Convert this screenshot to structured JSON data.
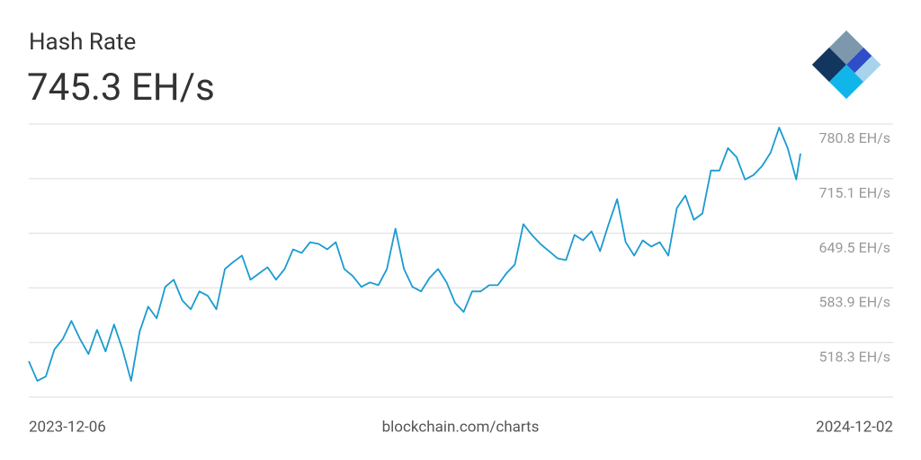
{
  "chart_data": {
    "type": "line",
    "title": "Hash Rate",
    "subtitle": "745.3 EH/s",
    "source": "blockchain.com/charts",
    "color": "#1b9bd1",
    "grid": true,
    "ylim": [
      452.7,
      780.8
    ],
    "yticks": [
      {
        "value": 518.3,
        "label": "518.3 EH/s"
      },
      {
        "value": 583.9,
        "label": "583.9 EH/s"
      },
      {
        "value": 649.5,
        "label": "649.5 EH/s"
      },
      {
        "value": 715.1,
        "label": "715.1 EH/s"
      },
      {
        "value": 780.8,
        "label": "780.8 EH/s"
      }
    ],
    "x": [
      "2023-12-06",
      "2023-12-10",
      "2023-12-14",
      "2023-12-18",
      "2023-12-22",
      "2023-12-26",
      "2023-12-30",
      "2024-01-03",
      "2024-01-07",
      "2024-01-11",
      "2024-01-15",
      "2024-01-19",
      "2024-01-23",
      "2024-01-27",
      "2024-01-31",
      "2024-02-04",
      "2024-02-08",
      "2024-02-12",
      "2024-02-16",
      "2024-02-20",
      "2024-02-24",
      "2024-02-28",
      "2024-03-03",
      "2024-03-07",
      "2024-03-11",
      "2024-03-15",
      "2024-03-19",
      "2024-03-23",
      "2024-03-27",
      "2024-03-31",
      "2024-04-04",
      "2024-04-08",
      "2024-04-12",
      "2024-04-16",
      "2024-04-20",
      "2024-04-24",
      "2024-04-28",
      "2024-05-02",
      "2024-05-06",
      "2024-05-10",
      "2024-05-14",
      "2024-05-18",
      "2024-05-22",
      "2024-05-26",
      "2024-05-30",
      "2024-06-03",
      "2024-06-07",
      "2024-06-11",
      "2024-06-15",
      "2024-06-19",
      "2024-06-23",
      "2024-06-27",
      "2024-07-01",
      "2024-07-05",
      "2024-07-09",
      "2024-07-13",
      "2024-07-17",
      "2024-07-21",
      "2024-07-25",
      "2024-07-29",
      "2024-08-02",
      "2024-08-06",
      "2024-08-10",
      "2024-08-14",
      "2024-08-18",
      "2024-08-22",
      "2024-08-26",
      "2024-08-30",
      "2024-09-03",
      "2024-09-07",
      "2024-09-11",
      "2024-09-15",
      "2024-09-19",
      "2024-09-23",
      "2024-09-27",
      "2024-10-01",
      "2024-10-05",
      "2024-10-09",
      "2024-10-13",
      "2024-10-17",
      "2024-10-21",
      "2024-10-25",
      "2024-10-29",
      "2024-11-02",
      "2024-11-06",
      "2024-11-10",
      "2024-11-14",
      "2024-11-18",
      "2024-11-22",
      "2024-11-26",
      "2024-11-30",
      "2024-12-02"
    ],
    "values": [
      495.8,
      472.2,
      477.5,
      509.8,
      522.7,
      544.2,
      522.7,
      504.4,
      533.5,
      507.6,
      539.9,
      509.8,
      472.2,
      531.3,
      561.4,
      547.4,
      585.1,
      593.7,
      568.9,
      558.2,
      579.7,
      574.3,
      558.2,
      606.6,
      615.2,
      622.7,
      593.7,
      601.2,
      608.7,
      593.7,
      606.6,
      630.2,
      625.9,
      638.8,
      636.7,
      630.2,
      638.8,
      606.6,
      598.0,
      585.1,
      590.5,
      587.2,
      606.6,
      655.0,
      606.6,
      585.1,
      579.7,
      595.8,
      606.6,
      590.5,
      565.7,
      555.0,
      579.7,
      579.7,
      587.2,
      587.2,
      601.2,
      612.0,
      660.4,
      647.5,
      636.7,
      628.1,
      619.5,
      617.3,
      647.5,
      641.0,
      651.8,
      628.1,
      660.4,
      690.5,
      638.8,
      622.7,
      641.0,
      633.5,
      638.8,
      622.7,
      679.7,
      694.8,
      665.7,
      673.3,
      724.9,
      724.9,
      751.8,
      741.0,
      714.1,
      719.5,
      730.3,
      746.4,
      776.5,
      751.8,
      714.1,
      745.3
    ]
  }
}
